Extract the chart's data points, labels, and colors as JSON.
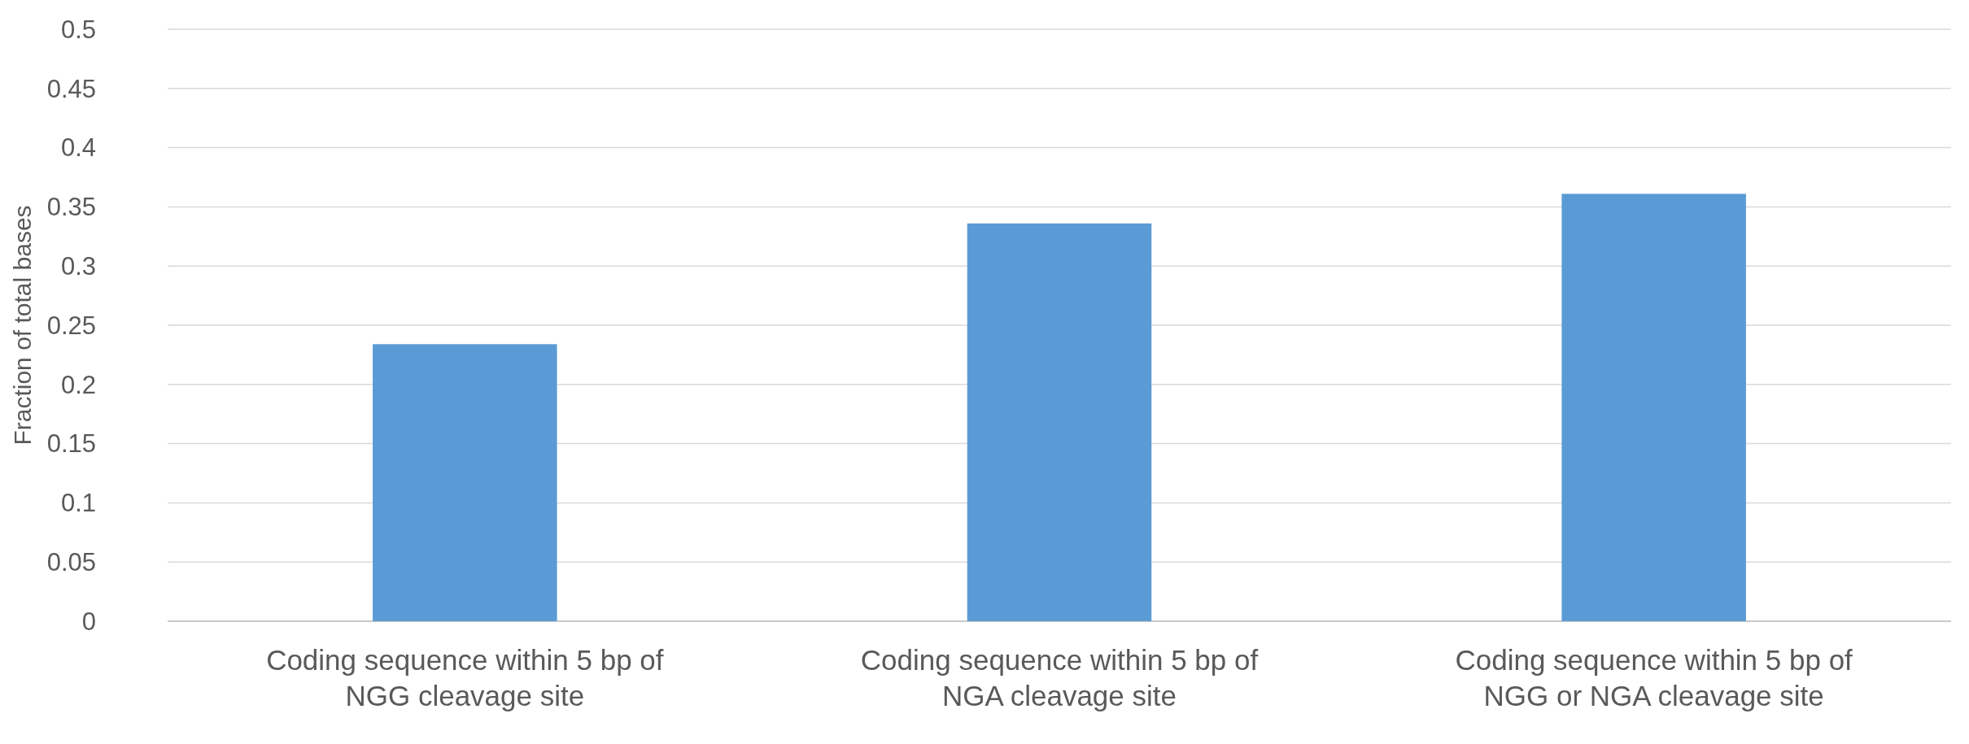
{
  "chart_data": {
    "type": "bar",
    "ylabel": "Fraction of total bases",
    "categories": [
      "Coding sequence within 5 bp of NGG cleavage site",
      "Coding sequence within 5 bp of NGA cleavage site",
      "Coding sequence within 5 bp of NGG or NGA cleavage site"
    ],
    "values": [
      0.234,
      0.336,
      0.361
    ],
    "color": "#5b9bd5",
    "ylim": [
      0,
      0.5
    ],
    "yticks": [
      0,
      0.05,
      0.1,
      0.15,
      0.2,
      0.25,
      0.3,
      0.35,
      0.4,
      0.45,
      0.5
    ],
    "grid": "y"
  }
}
